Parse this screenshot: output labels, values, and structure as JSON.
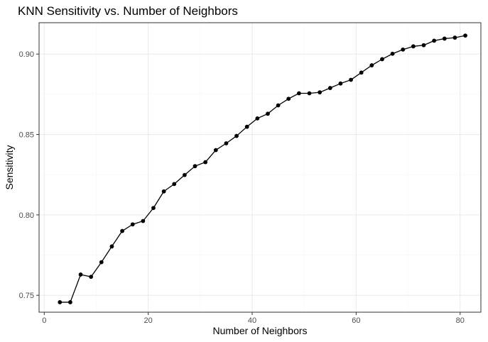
{
  "chart_data": {
    "type": "line",
    "title": "KNN Sensitivity vs. Number of Neighbors",
    "xlabel": "Number of Neighbors",
    "ylabel": "Sensitivity",
    "xlim": [
      -1,
      84
    ],
    "ylim": [
      0.7395,
      0.9195
    ],
    "x_ticks": [
      0,
      20,
      40,
      60,
      80
    ],
    "x_minor_ticks": [
      10,
      30,
      50,
      70
    ],
    "y_ticks": [
      0.75,
      0.8,
      0.85,
      0.9
    ],
    "y_minor_ticks": [
      0.775,
      0.825,
      0.875
    ],
    "x_tick_labels": [
      "0",
      "20",
      "40",
      "60",
      "80"
    ],
    "y_tick_labels": [
      "0.75",
      "0.80",
      "0.85",
      "0.90"
    ],
    "grid": true,
    "theme": "bw",
    "colors": {
      "panel_border": "#333333",
      "grid_major": "#ebebeb",
      "grid_minor": "#f5f5f5",
      "line": "#000000",
      "point": "#000000"
    },
    "series": [
      {
        "x": [
          3,
          5,
          7,
          9,
          11,
          13,
          15,
          17,
          19,
          21,
          23,
          25,
          27,
          29,
          31,
          33,
          35,
          37,
          39,
          41,
          43,
          45,
          47,
          49,
          51,
          53,
          55,
          57,
          59,
          61,
          63,
          65,
          67,
          69,
          71,
          73,
          75,
          77,
          79,
          81
        ],
        "values": [
          0.7457,
          0.7457,
          0.7629,
          0.7615,
          0.7706,
          0.7804,
          0.79,
          0.7941,
          0.7962,
          0.8043,
          0.8146,
          0.8192,
          0.8248,
          0.8303,
          0.8328,
          0.8403,
          0.8445,
          0.8491,
          0.8548,
          0.86,
          0.8629,
          0.8681,
          0.8722,
          0.8756,
          0.8756,
          0.8762,
          0.8789,
          0.8817,
          0.884,
          0.8885,
          0.893,
          0.8968,
          0.9002,
          0.9028,
          0.9048,
          0.9055,
          0.9083,
          0.9096,
          0.9102,
          0.9115
        ]
      }
    ]
  }
}
